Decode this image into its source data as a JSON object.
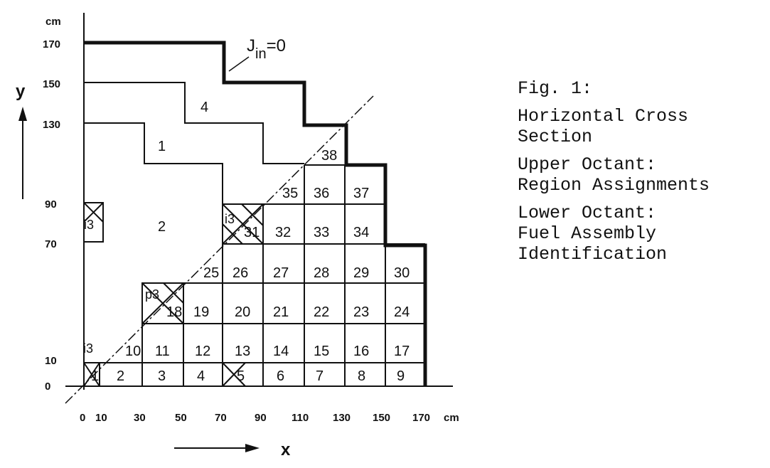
{
  "caption": {
    "fig": "Fig. 1:",
    "title_1": "Horizontal Cross",
    "title_2": "Section",
    "upper_1": "Upper Octant:",
    "upper_2": "Region Assignments",
    "lower_1": "Lower Octant:",
    "lower_2": "Fuel Assembly",
    "lower_3": "Identification"
  },
  "axes": {
    "x_label": "x",
    "y_label": "y",
    "unit": "cm",
    "x_ticks": [
      "0",
      "10",
      "30",
      "50",
      "70",
      "90",
      "110",
      "130",
      "150",
      "170"
    ],
    "y_ticks": [
      "0",
      "10",
      "70",
      "90",
      "130",
      "150",
      "170"
    ]
  },
  "boundary_label": {
    "base": "J",
    "sub": "in",
    "rest": "=0"
  },
  "regions": {
    "r1": "1",
    "r2": "2",
    "r4": "4",
    "i3_left": "i3",
    "i3_diag": "i3",
    "i3_origin": "i3",
    "p3": "p3"
  },
  "assemblies": [
    "1",
    "2",
    "3",
    "4",
    "5",
    "6",
    "7",
    "8",
    "9",
    "10",
    "11",
    "12",
    "13",
    "14",
    "15",
    "16",
    "17",
    "18",
    "19",
    "20",
    "21",
    "22",
    "23",
    "24",
    "25",
    "26",
    "27",
    "28",
    "29",
    "30",
    "31",
    "32",
    "33",
    "34",
    "35",
    "36",
    "37",
    "38"
  ]
}
